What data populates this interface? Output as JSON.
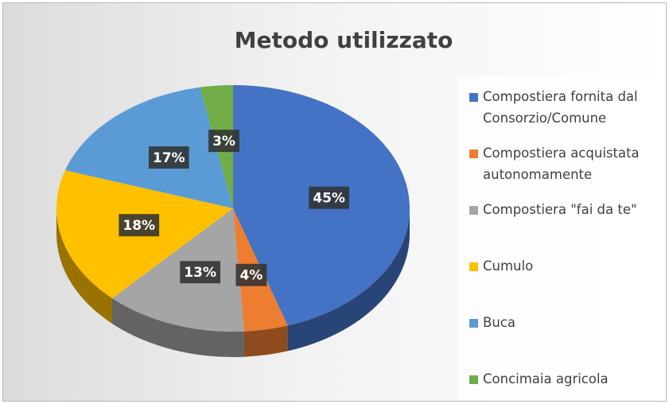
{
  "chart_data": {
    "type": "pie",
    "title": "Metodo utilizzato",
    "categories": [
      "Compostiera fornita dal Consorzio/Comune",
      "Compostiera acquistata autonomamente",
      "Compostiera \"fai da te\"",
      "Cumulo",
      "Buca",
      "Concimaia agricola"
    ],
    "values": [
      45,
      4,
      13,
      18,
      17,
      3
    ],
    "value_labels": [
      "45%",
      "4%",
      "13%",
      "18%",
      "17%",
      "3%"
    ],
    "colors": [
      "#4472c4",
      "#ed7d31",
      "#a5a5a5",
      "#ffc000",
      "#5b9bd5",
      "#70ad47"
    ],
    "legend": "right"
  }
}
